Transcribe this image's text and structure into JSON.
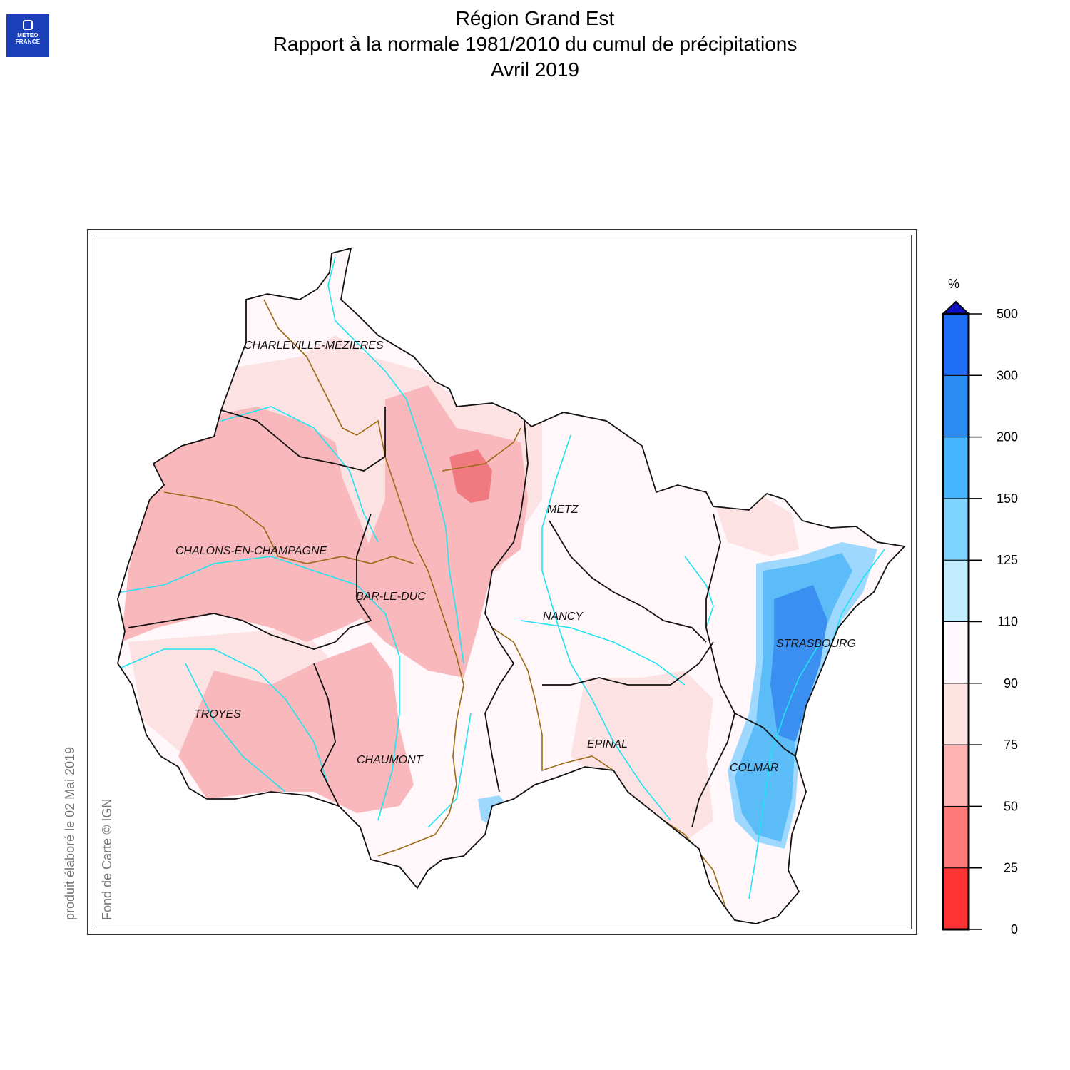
{
  "logo": {
    "line1": "METEO",
    "line2": "FRANCE"
  },
  "title": {
    "line1": "Région Grand Est",
    "line2": "Rapport à la normale 1981/2010 du cumul de précipitations",
    "line3": "Avril 2019"
  },
  "credits": {
    "produced": "produit élaboré le 02 Mai 2019",
    "basemap": "Fond de Carte © IGN"
  },
  "cities": {
    "charleville": "CHARLEVILLE-MEZIERES",
    "metz": "METZ",
    "chalons": "CHALONS-EN-CHAMPAGNE",
    "bar_le_duc": "BAR-LE-DUC",
    "nancy": "NANCY",
    "strasbourg": "STRASBOURG",
    "troyes": "TROYES",
    "epinal": "EPINAL",
    "chaumont": "CHAUMONT",
    "colmar": "COLMAR"
  },
  "legend": {
    "unit": "%",
    "ticks": [
      "0",
      "25",
      "50",
      "75",
      "90",
      "110",
      "125",
      "150",
      "200",
      "300",
      "500"
    ],
    "colors": [
      "#ff3333",
      "#ff7a7a",
      "#ffb3b3",
      "#ffe3e3",
      "#fff8fc",
      "#c4ecff",
      "#7fd4ff",
      "#46b4ff",
      "#2b8cf2",
      "#1e6ff5",
      "#1040ff"
    ],
    "overflow_color": "#1010c0"
  },
  "colors": {
    "region_fill": "#fff7fa",
    "light_pink": "#fde2e4",
    "pink": "#f9b8bc",
    "red": "#f07a80",
    "blue_light": "#9ed8ff",
    "blue": "#5cbcf7",
    "blue_dark": "#3a8ff0",
    "river": "#1ee4f2",
    "dept_border": "#111111",
    "basin_border": "#9a6a14"
  }
}
